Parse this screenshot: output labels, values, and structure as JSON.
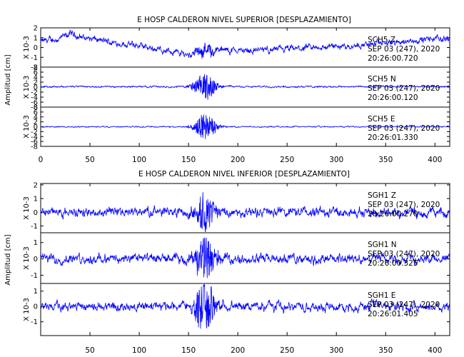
{
  "style": {
    "trace_color": "#0000ff",
    "axis_color": "#000000",
    "background": "#ffffff"
  },
  "chart_data": [
    {
      "type": "line",
      "title": "E HOSP CALDERON NIVEL SUPERIOR [DESPLAZAMIENTO]",
      "ylabel": "Amplitud [cm]",
      "scale_label": "X 10-3",
      "xlim": [
        0,
        415
      ],
      "xticks": [
        0,
        50,
        100,
        150,
        200,
        250,
        300,
        350,
        400
      ],
      "xtick_labels": [
        "0",
        "50",
        "100",
        "150",
        "200",
        "250",
        "300",
        "350",
        "400"
      ],
      "grid": false,
      "panels": [
        {
          "channel": "SCH5 Z",
          "date": "SEP 03 (247), 2020",
          "time": "20:26:00.720",
          "ylim": [
            -2,
            2
          ],
          "yticks": [
            -2,
            -1,
            0,
            1,
            2
          ],
          "ytick_labels": [
            "-2",
            "-1",
            "0",
            "1",
            "2"
          ],
          "envelope": [
            [
              0,
              0.6
            ],
            [
              20,
              0.9
            ],
            [
              30,
              1.4
            ],
            [
              40,
              1.1
            ],
            [
              60,
              0.7
            ],
            [
              100,
              0.15
            ],
            [
              150,
              -0.7
            ],
            [
              165,
              -0.3
            ],
            [
              200,
              -0.3
            ],
            [
              250,
              -0.2
            ],
            [
              300,
              0.1
            ],
            [
              360,
              0.5
            ],
            [
              400,
              0.9
            ],
            [
              415,
              0.9
            ]
          ],
          "noise": 0.35,
          "burst_peak": 0.6
        },
        {
          "channel": "SCH5 N",
          "date": "SEP 03 (247), 2020",
          "time": "20:26:00.120",
          "ylim": [
            -8,
            8
          ],
          "yticks": [
            -8,
            -6,
            -4,
            -2,
            0,
            2,
            4,
            6,
            8
          ],
          "ytick_labels": [
            "-8",
            "-6",
            "-4",
            "-2",
            "0",
            "2",
            "4",
            "6",
            "8"
          ],
          "envelope": [
            [
              0,
              0.2
            ],
            [
              415,
              0.2
            ]
          ],
          "noise": 0.35,
          "burst_peak": 5.5
        },
        {
          "channel": "SCH5 E",
          "date": "SEP 03 (247), 2020",
          "time": "20:26:01.330",
          "ylim": [
            -8,
            8
          ],
          "yticks": [
            -8,
            -6,
            -4,
            -2,
            0,
            2,
            4,
            6,
            8
          ],
          "ytick_labels": [
            "-8",
            "-6",
            "-4",
            "-2",
            "0",
            "2",
            "4",
            "6",
            "8"
          ],
          "envelope": [
            [
              0,
              0
            ],
            [
              415,
              0
            ]
          ],
          "noise": 0.25,
          "burst_peak": 5.5
        }
      ]
    },
    {
      "type": "line",
      "title": "E HOSP CALDERON NIVEL INFERIOR [DESPLAZAMIENTO]",
      "ylabel": "Amplitud [cm]",
      "scale_label": "X 10-3",
      "xlim": [
        0,
        415
      ],
      "xticks": [
        50,
        100,
        150,
        200,
        250,
        300,
        350,
        400
      ],
      "xtick_labels": [
        "50",
        "100",
        "150",
        "200",
        "250",
        "300",
        "350",
        "400"
      ],
      "grid": false,
      "panels": [
        {
          "channel": "SGH1 Z",
          "date": "SEP 03 (247), 2020",
          "time": "20:26:00.270",
          "ylim": [
            -1.5,
            2.1
          ],
          "yticks": [
            -1,
            0,
            1,
            2
          ],
          "ytick_labels": [
            "-1",
            "0",
            "1",
            "2"
          ],
          "envelope": [
            [
              0,
              0
            ],
            [
              415,
              0
            ]
          ],
          "noise": 0.35,
          "burst_peak": 1.4
        },
        {
          "channel": "SGH1 N",
          "date": "SEP 03 (247), 2020",
          "time": "20:26:00.325",
          "ylim": [
            -1.5,
            1.6
          ],
          "yticks": [
            -1,
            0,
            1
          ],
          "ytick_labels": [
            "-1",
            "0",
            "1"
          ],
          "envelope": [
            [
              0,
              0
            ],
            [
              415,
              0
            ]
          ],
          "noise": 0.3,
          "burst_peak": 1.3
        },
        {
          "channel": "SGH1 E",
          "date": "SEP 03 (247), 2020",
          "time": "20:26:01.405",
          "ylim": [
            -1.9,
            1.5
          ],
          "yticks": [
            -1,
            0,
            1
          ],
          "ytick_labels": [
            "-1",
            "0",
            "1"
          ],
          "envelope": [
            [
              0,
              0
            ],
            [
              415,
              0
            ]
          ],
          "noise": 0.3,
          "burst_peak": 1.6
        }
      ]
    }
  ]
}
